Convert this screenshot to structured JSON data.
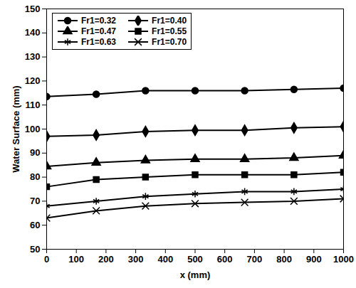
{
  "chart_data": {
    "type": "line",
    "x_label": "x (mm)",
    "y_label": "Water Surface (mm)",
    "x": [
      0,
      167,
      333,
      500,
      667,
      833,
      1000
    ],
    "series": [
      {
        "name": "Fr1=0.32",
        "color": "#000000",
        "marker": "circle",
        "line_style": "solid",
        "values": [
          113.5,
          114.5,
          116,
          116,
          116,
          116.5,
          117
        ]
      },
      {
        "name": "Fr1=0.40",
        "color": "#000000",
        "marker": "diamond",
        "line_style": "solid",
        "values": [
          97,
          97.5,
          99,
          99.5,
          99.5,
          100.5,
          101
        ]
      },
      {
        "name": "Fr1=0.47",
        "color": "#000000",
        "marker": "triangle",
        "line_style": "solid",
        "values": [
          84.5,
          86,
          87,
          87.5,
          87.5,
          88,
          89
        ]
      },
      {
        "name": "Fr1=0.55",
        "color": "#000000",
        "marker": "square",
        "line_style": "solid",
        "values": [
          76,
          79,
          80,
          81,
          81,
          81,
          82
        ]
      },
      {
        "name": "Fr1=0.63",
        "color": "#000000",
        "marker": "asterisk",
        "line_style": "solid",
        "values": [
          68,
          70,
          72,
          73,
          74,
          74,
          75
        ]
      },
      {
        "name": "Fr1=0.70",
        "color": "#000000",
        "marker": "times",
        "line_style": "solid",
        "values": [
          63,
          66,
          68,
          69,
          69.5,
          70,
          71
        ]
      }
    ],
    "xlim": [
      0,
      1000
    ],
    "xticks": [
      0,
      100,
      200,
      300,
      400,
      500,
      600,
      700,
      800,
      900,
      1000
    ],
    "ylim": [
      50,
      150
    ],
    "yticks": [
      50,
      60,
      70,
      80,
      90,
      100,
      110,
      120,
      130,
      140,
      150
    ],
    "grid": false,
    "legend": "top-left"
  }
}
